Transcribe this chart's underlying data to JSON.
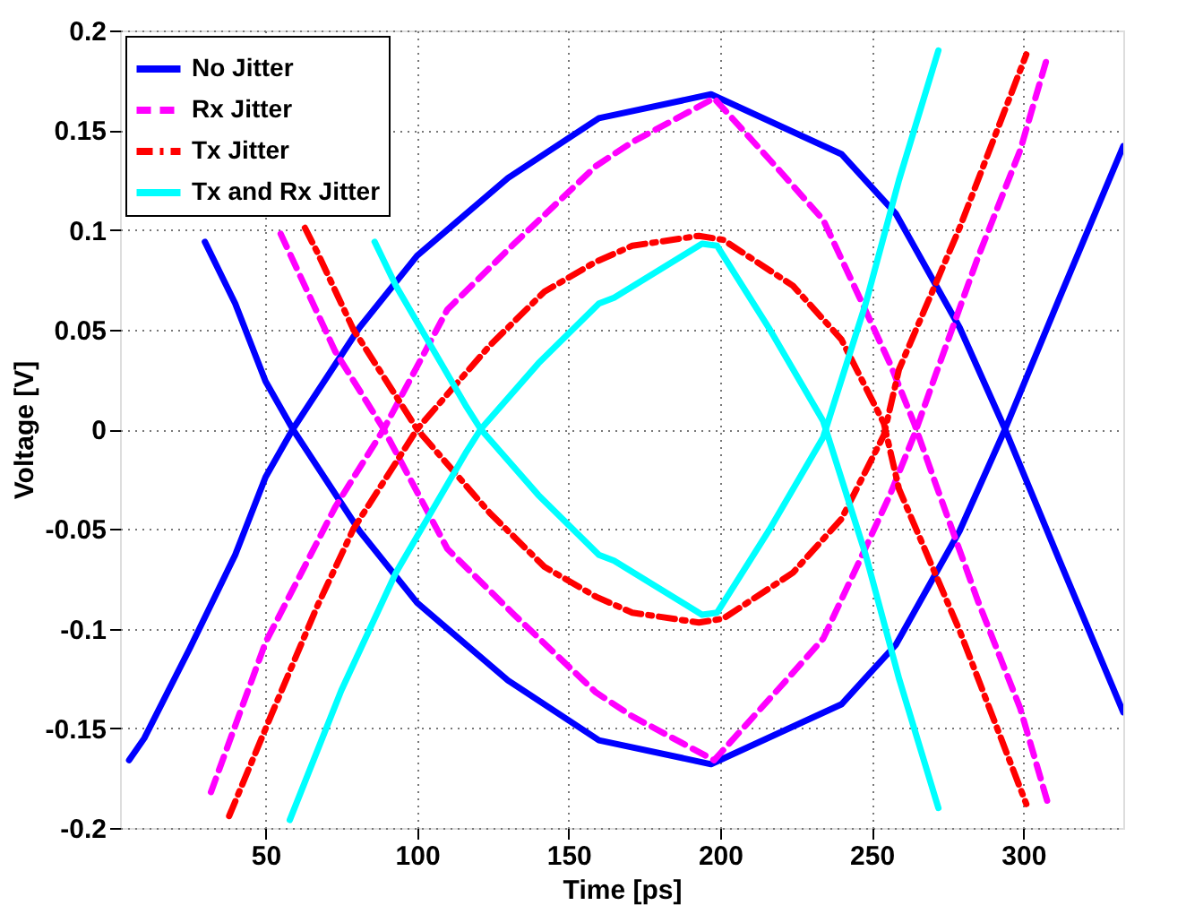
{
  "chart_data": {
    "type": "line",
    "xlabel": "Time [ps]",
    "ylabel": "Voltage [V]",
    "xlim": [
      2,
      333
    ],
    "ylim": [
      -0.2,
      0.2
    ],
    "xticks": [
      50,
      100,
      150,
      200,
      250,
      300
    ],
    "yticks": [
      -0.2,
      -0.15,
      -0.1,
      -0.05,
      0,
      0.05,
      0.1,
      0.15,
      0.2
    ],
    "grid": true,
    "legend": "top left",
    "marker": "none",
    "series": [
      {
        "name": "No Jitter",
        "color": "#0000ff",
        "line_style": "solid",
        "x": [
          5,
          10,
          25,
          40,
          50,
          59,
          81,
          100,
          130,
          160,
          197,
          240,
          258,
          279,
          294,
          312,
          333
        ],
        "values": [
          -0.166,
          -0.155,
          -0.11,
          -0.063,
          -0.024,
          0,
          0.051,
          0.087,
          0.126,
          0.156,
          0.168,
          0.138,
          0.108,
          0.051,
          0,
          -0.066,
          -0.142
        ]
      },
      {
        "color": "#0000ff",
        "line_style": "solid",
        "x": [
          30,
          40,
          50,
          59,
          81,
          100,
          130,
          160,
          197,
          240,
          258,
          279,
          294,
          312,
          333
        ],
        "values": [
          0.094,
          0.063,
          0.024,
          0,
          -0.051,
          -0.087,
          -0.126,
          -0.156,
          -0.168,
          -0.138,
          -0.108,
          -0.051,
          0,
          0.066,
          0.142
        ]
      },
      {
        "name": "Rx Jitter",
        "color": "#ff00ff",
        "line_style": "dashed",
        "x": [
          32,
          50,
          73,
          89,
          110,
          132,
          159,
          171,
          198,
          220,
          234,
          246,
          256,
          264,
          271,
          285,
          299,
          308
        ],
        "values": [
          -0.182,
          -0.107,
          -0.039,
          0,
          0.06,
          0.093,
          0.132,
          0.144,
          0.166,
          0.129,
          0.105,
          0.066,
          0.033,
          0.003,
          -0.027,
          -0.086,
          -0.14,
          -0.187
        ]
      },
      {
        "color": "#ff00ff",
        "line_style": "dashed",
        "x": [
          55,
          73,
          89,
          110,
          132,
          159,
          171,
          198,
          220,
          234,
          246,
          256,
          264,
          271,
          285,
          299,
          308
        ],
        "values": [
          0.098,
          0.039,
          0,
          -0.06,
          -0.093,
          -0.132,
          -0.144,
          -0.166,
          -0.129,
          -0.105,
          -0.066,
          -0.033,
          -0.003,
          0.027,
          0.086,
          0.14,
          0.187
        ]
      },
      {
        "name": "Tx Jitter",
        "color": "#ff0000",
        "line_style": "dashdot",
        "x": [
          38,
          52,
          67,
          79,
          95,
          100,
          124,
          142,
          159,
          171,
          193,
          201,
          224,
          240,
          254,
          259,
          279,
          301
        ],
        "values": [
          -0.194,
          -0.143,
          -0.089,
          -0.05,
          -0.012,
          0,
          0.042,
          0.069,
          0.084,
          0.092,
          0.097,
          0.095,
          0.072,
          0.045,
          0.003,
          -0.03,
          -0.101,
          -0.188
        ]
      },
      {
        "color": "#ff0000",
        "line_style": "dashdot",
        "x": [
          63,
          67,
          79,
          95,
          100,
          124,
          142,
          159,
          171,
          193,
          201,
          224,
          240,
          254,
          259,
          279,
          301
        ],
        "values": [
          0.101,
          0.089,
          0.05,
          0.012,
          0,
          -0.042,
          -0.069,
          -0.084,
          -0.092,
          -0.097,
          -0.095,
          -0.072,
          -0.045,
          -0.003,
          0.03,
          0.101,
          0.188
        ]
      },
      {
        "name": "Tx and Rx Jitter",
        "color": "#00ffff",
        "line_style": "solid",
        "x": [
          58,
          75,
          93,
          116,
          121,
          140,
          160,
          165,
          194,
          199,
          216,
          234,
          248,
          259,
          272
        ],
        "values": [
          -0.196,
          -0.131,
          -0.072,
          -0.012,
          0,
          0.033,
          0.063,
          0.066,
          0.093,
          0.092,
          0.051,
          0.004,
          -0.063,
          -0.125,
          -0.19
        ]
      },
      {
        "color": "#00ffff",
        "line_style": "solid",
        "x": [
          86,
          93,
          116,
          121,
          140,
          160,
          165,
          194,
          199,
          216,
          234,
          248,
          259,
          272
        ],
        "values": [
          0.094,
          0.072,
          0.012,
          0,
          -0.033,
          -0.063,
          -0.066,
          -0.093,
          -0.092,
          -0.051,
          -0.004,
          0.063,
          0.125,
          0.19
        ]
      }
    ]
  }
}
